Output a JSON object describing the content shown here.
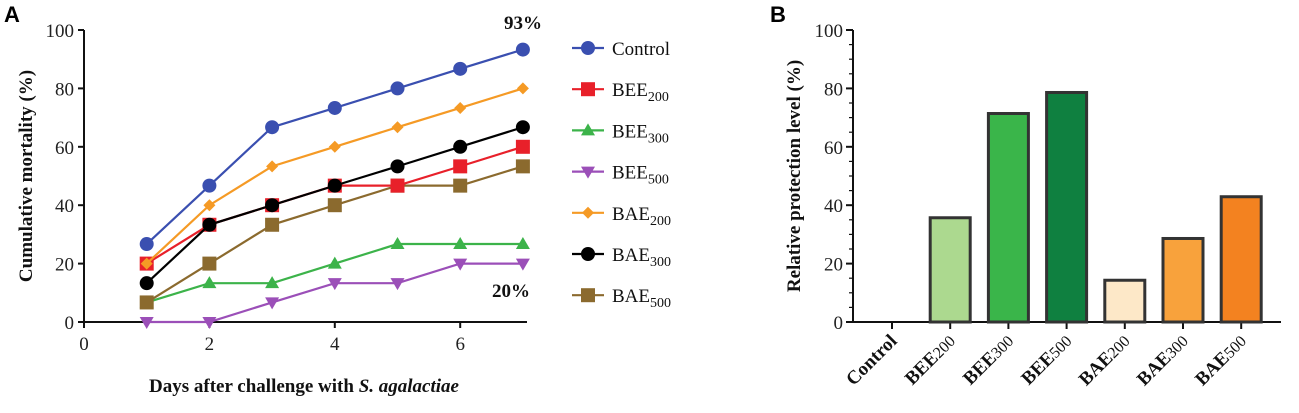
{
  "chart_data": [
    {
      "panel": "A",
      "type": "line",
      "xlabel_prefix": "Days after challenge with ",
      "xlabel_italic": "S. agalactiae",
      "ylabel": "Cumulative mortality (%)",
      "xlim": [
        0,
        7
      ],
      "ylim": [
        0,
        100
      ],
      "xticks": [
        "0",
        "2",
        "4",
        "6"
      ],
      "yticks": [
        "0",
        "20",
        "40",
        "60",
        "80",
        "100"
      ],
      "x": [
        1,
        2,
        3,
        4,
        5,
        6,
        7
      ],
      "legend_position": "right",
      "annotations": [
        {
          "text": "93%",
          "near": "Control day 7"
        },
        {
          "text": "20%",
          "near": "BEE500 day 7"
        }
      ],
      "series": [
        {
          "name": "Control",
          "base": "Control",
          "sub": "",
          "color": "#3a4fb0",
          "marker": "circle",
          "values": [
            26.7,
            46.7,
            66.7,
            73.3,
            80,
            86.7,
            93.3
          ]
        },
        {
          "name": "BEE200",
          "base": "BEE",
          "sub": "200",
          "color": "#e8202a",
          "marker": "square",
          "values": [
            20,
            33.3,
            40,
            46.7,
            46.7,
            53.3,
            60
          ]
        },
        {
          "name": "BEE300",
          "base": "BEE",
          "sub": "300",
          "color": "#3cb34a",
          "marker": "triangle-up",
          "values": [
            6.7,
            13.3,
            13.3,
            20,
            26.7,
            26.7,
            26.7
          ]
        },
        {
          "name": "BEE500",
          "base": "BEE",
          "sub": "500",
          "color": "#9b4fb8",
          "marker": "triangle-down",
          "values": [
            0,
            0,
            6.7,
            13.3,
            13.3,
            20,
            20
          ]
        },
        {
          "name": "BAE200",
          "base": "BAE",
          "sub": "200",
          "color": "#f59a25",
          "marker": "diamond",
          "values": [
            20,
            40,
            53.3,
            60,
            66.7,
            73.3,
            80
          ]
        },
        {
          "name": "BAE300",
          "base": "BAE",
          "sub": "300",
          "color": "#000000",
          "marker": "circle",
          "values": [
            13.3,
            33.3,
            40,
            46.7,
            53.3,
            60,
            66.7
          ]
        },
        {
          "name": "BAE500",
          "base": "BAE",
          "sub": "500",
          "color": "#8b6a2e",
          "marker": "square",
          "values": [
            6.7,
            20,
            33.3,
            40,
            46.7,
            46.7,
            53.3
          ]
        }
      ]
    },
    {
      "panel": "B",
      "type": "bar",
      "ylabel": "Relative protection level (%)",
      "ylim": [
        0,
        100
      ],
      "yticks": [
        "0",
        "20",
        "40",
        "60",
        "80",
        "100"
      ],
      "categories": [
        {
          "base": "Control",
          "sub": ""
        },
        {
          "base": "BEE",
          "sub": "200"
        },
        {
          "base": "BEE",
          "sub": "300"
        },
        {
          "base": "BEE",
          "sub": "500"
        },
        {
          "base": "BAE",
          "sub": "200"
        },
        {
          "base": "BAE",
          "sub": "300"
        },
        {
          "base": "BAE",
          "sub": "500"
        }
      ],
      "values": [
        0,
        35.7,
        71.4,
        78.6,
        14.3,
        28.6,
        42.9
      ],
      "colors": [
        "#ffffff",
        "#acd98f",
        "#3ab54a",
        "#0f8040",
        "#fde8c8",
        "#f8a23c",
        "#f38220"
      ]
    }
  ]
}
